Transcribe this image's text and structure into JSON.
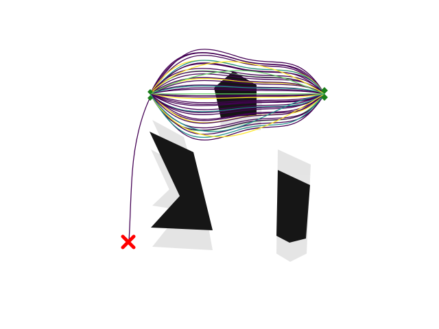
{
  "diagram": {
    "kind": "trajectory-sampling-plot",
    "obstacle_color": "#111111",
    "obstacle_shadow_color": "#bdbdbd",
    "trajectory_colormap": [
      "#440154",
      "#3b528b",
      "#21918c",
      "#5ec962",
      "#fde725"
    ],
    "dominant_trajectory_color": "#440154",
    "waypoint_color": "#1a7f1a",
    "goal_color": "#ff0000",
    "markers": [
      {
        "name": "start-waypoint-marker",
        "shape": "diamond-icon"
      },
      {
        "name": "end-waypoint-marker",
        "shape": "diamond-icon"
      },
      {
        "name": "goal-marker",
        "shape": "x-icon"
      }
    ],
    "trajectory_count_visible": 40
  }
}
